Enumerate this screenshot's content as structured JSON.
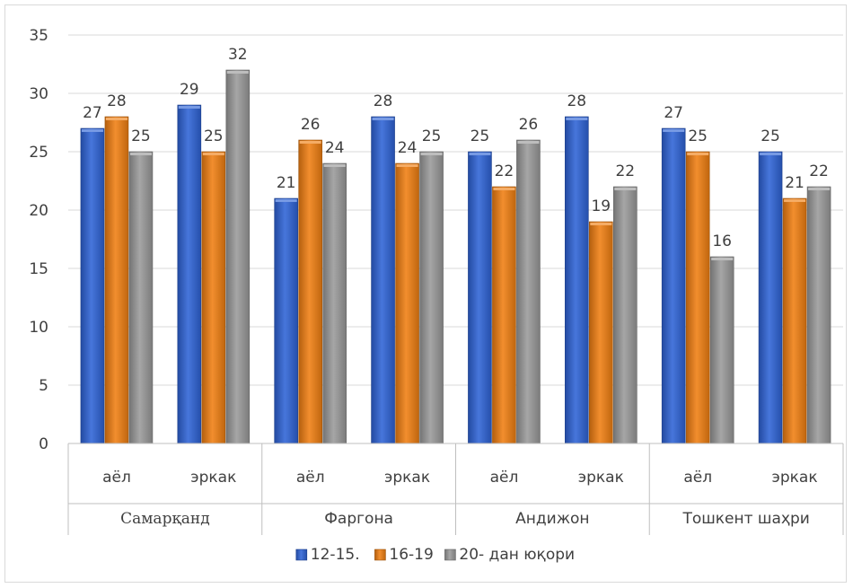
{
  "chart_data": {
    "type": "bar",
    "title": "",
    "xlabel": "",
    "ylabel": "",
    "ylim": [
      0,
      35
    ],
    "yticks": [
      0,
      5,
      10,
      15,
      20,
      25,
      30,
      35
    ],
    "grid": true,
    "legend_position": "bottom",
    "groups": [
      {
        "name": "Самарқанд",
        "subcategories": [
          "аёл",
          "эркак"
        ]
      },
      {
        "name": "Фаргона",
        "subcategories": [
          "аёл",
          "эркак"
        ]
      },
      {
        "name": "Андижон",
        "subcategories": [
          "аёл",
          "эркак"
        ]
      },
      {
        "name": "Тошкент шаҳри",
        "subcategories": [
          "аёл",
          "эркак"
        ]
      }
    ],
    "series": [
      {
        "name": "12-15.",
        "color": "#2e63d6",
        "values": [
          27,
          29,
          21,
          28,
          25,
          28,
          27,
          25
        ]
      },
      {
        "name": "16-19",
        "color": "#f07f12",
        "values": [
          28,
          25,
          26,
          24,
          22,
          19,
          25,
          21
        ]
      },
      {
        "name": "20- дан юқори",
        "color": "#9a9a9a",
        "values": [
          25,
          32,
          24,
          25,
          26,
          22,
          16,
          22
        ]
      }
    ]
  }
}
